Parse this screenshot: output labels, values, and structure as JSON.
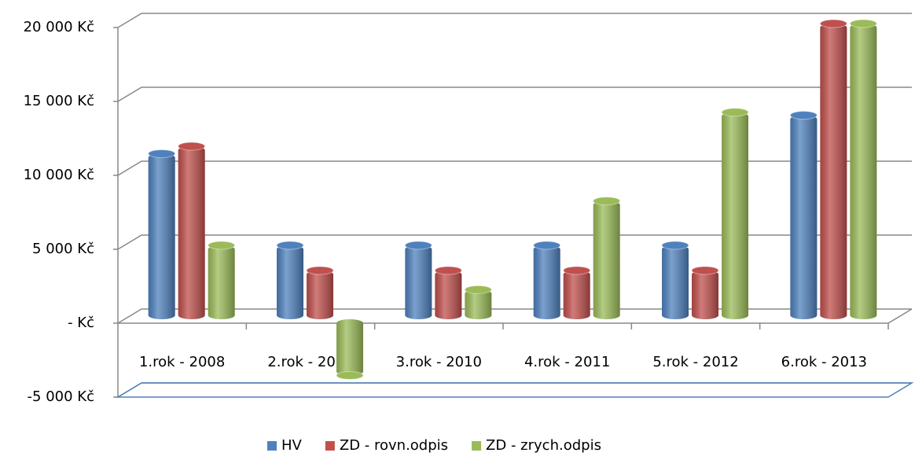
{
  "chart_data": {
    "type": "bar",
    "categories": [
      "1.rok - 2008",
      "2.rok - 2009",
      "3.rok - 2010",
      "4.rok - 2011",
      "5.rok - 2012",
      "6.rok - 2013"
    ],
    "series": [
      {
        "name": "HV",
        "color": "#4f81bd",
        "values": [
          11200,
          5000,
          5000,
          5000,
          5000,
          13800
        ]
      },
      {
        "name": "ZD - rovn.odpis",
        "color": "#c0504d",
        "values": [
          11700,
          3300,
          3300,
          3300,
          3300,
          20000
        ]
      },
      {
        "name": "ZD - zrych.odpis",
        "color": "#9bbb59",
        "values": [
          5000,
          -3800,
          2000,
          8000,
          14000,
          20000
        ]
      }
    ],
    "ylim": [
      -5000,
      20000
    ],
    "yticks": [
      {
        "value": -5000,
        "label": "-5 000 Kč"
      },
      {
        "value": 0,
        "label": "-   Kč"
      },
      {
        "value": 5000,
        "label": "5 000 Kč"
      },
      {
        "value": 10000,
        "label": "10 000 Kč"
      },
      {
        "value": 15000,
        "label": "15 000 Kč"
      },
      {
        "value": 20000,
        "label": "20 000 Kč"
      }
    ],
    "grid": true,
    "legend": "bottom"
  }
}
